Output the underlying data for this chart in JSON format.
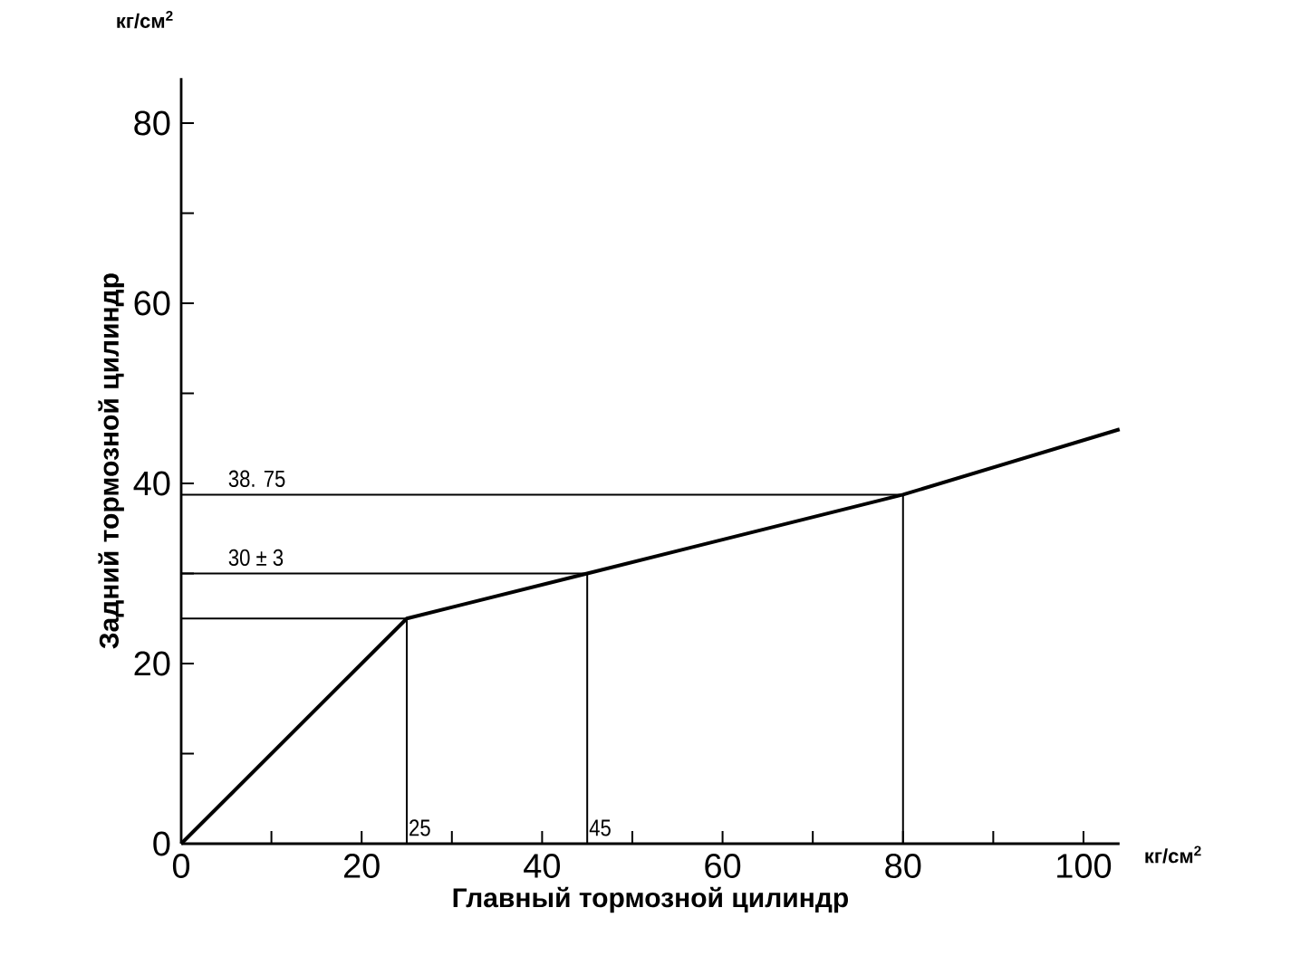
{
  "chart_data": {
    "type": "line",
    "xlabel": "Главный тормозной цилиндр",
    "ylabel": "Задний тормозной цилиндр",
    "annotations": [
      "кг/см$^{2}$",
      "кг/см$^{2}$",
      {
        "text": "38. 75",
        "x": 5,
        "y": 38.75
      },
      {
        "text": "30 ± 3",
        "x": 5,
        "y": 30
      },
      {
        "text": "25",
        "x": 25,
        "y": 0
      },
      {
        "text": "45",
        "x": 45,
        "y": 0
      }
    ],
    "series": [
      {
        "color": "#000000",
        "x": [
          0,
          25,
          45,
          80,
          104
        ],
        "values": [
          0,
          25,
          30,
          38.75,
          46
        ]
      },
      {
        "color": "#000000",
        "x": [
          0,
          25,
          25
        ],
        "values": [
          25,
          25,
          0
        ]
      },
      {
        "color": "#000000",
        "x": [
          0,
          45,
          45
        ],
        "values": [
          30,
          30,
          0
        ]
      },
      {
        "color": "#000000",
        "x": [
          0,
          80,
          80
        ],
        "values": [
          38.75,
          38.75,
          0
        ]
      }
    ],
    "xlim": [
      0,
      104
    ],
    "ylim": [
      0,
      85
    ],
    "xticks": [
      0,
      {
        "value": 10,
        "label": null
      },
      20,
      {
        "value": 30,
        "label": null
      },
      40,
      {
        "value": 50,
        "label": null
      },
      60,
      {
        "value": 70,
        "label": null
      },
      80,
      {
        "value": 90,
        "label": null
      },
      100
    ],
    "yticks": [
      0,
      {
        "value": 10,
        "label": null
      },
      20,
      {
        "value": 30,
        "label": null
      },
      40,
      {
        "value": 50,
        "label": null
      },
      60,
      {
        "value": 70,
        "label": null
      },
      80
    ],
    "grid": false,
    "line_style": "solid"
  }
}
